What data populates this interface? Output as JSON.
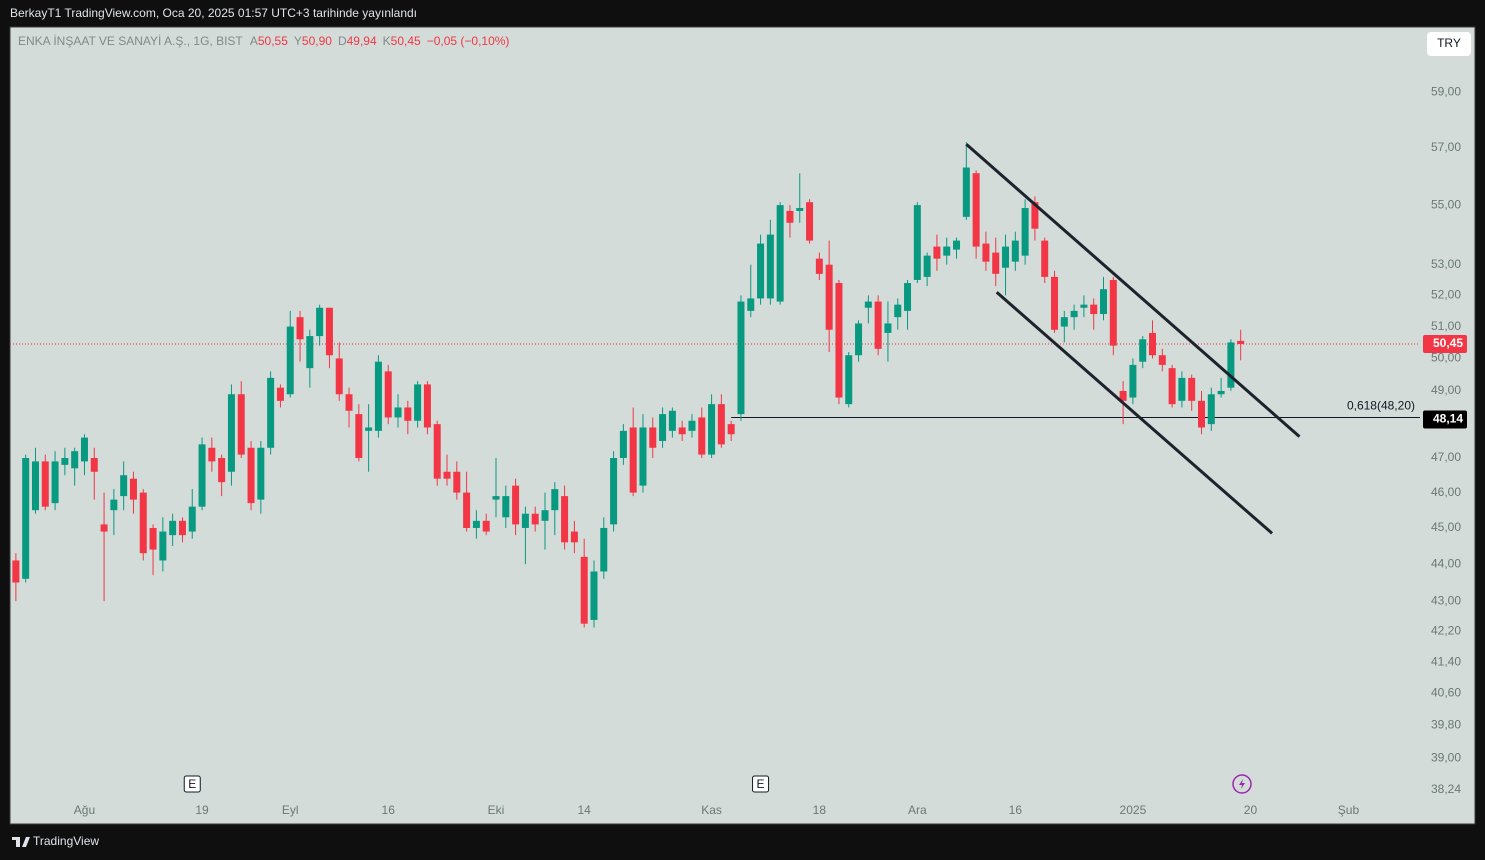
{
  "header": {
    "published": "BerkayT1 TradingView.com, Oca 20, 2025 01:57 UTC+3 tarihinde yayınlandı"
  },
  "chart_data": {
    "type": "candlestick",
    "title": "ENKA İNŞAAT VE SANAYİ A.Ş., 1G, BIST",
    "ohlc_legend": [
      {
        "label": "A",
        "value": "50,55"
      },
      {
        "label": "Y",
        "value": "50,90"
      },
      {
        "label": "D",
        "value": "49,94"
      },
      {
        "label": "K",
        "value": "50,45"
      }
    ],
    "change": "−0,05 (−0,10%)",
    "currency": "TRY",
    "log_scale": true,
    "grid": false,
    "up_color": "#089981",
    "down_color": "#f23645",
    "open": [
      44.1,
      43.6,
      45.5,
      46.9,
      45.7,
      46.8,
      46.7,
      46.9,
      47.0,
      45.1,
      45.5,
      45.9,
      46.4,
      46.0,
      45.0,
      44.1,
      44.8,
      45.2,
      44.9,
      45.6,
      47.3,
      47.0,
      46.6,
      48.9,
      47.3,
      45.8,
      47.3,
      49.1,
      48.9,
      51.3,
      49.7,
      50.7,
      51.6,
      50.0,
      48.9,
      48.3,
      47.8,
      47.8,
      49.6,
      48.2,
      48.5,
      48.1,
      49.2,
      48.0,
      46.6,
      46.6,
      46.0,
      45.0,
      45.2,
      45.8,
      45.3,
      46.2,
      45.0,
      45.4,
      45.2,
      45.5,
      45.9,
      44.9,
      44.2,
      42.5,
      43.8,
      45.1,
      47.0,
      47.9,
      46.2,
      47.9,
      47.5,
      47.8,
      47.9,
      47.8,
      48.2,
      47.1,
      48.6,
      48.0,
      48.3,
      51.5,
      51.9,
      51.9,
      51.8,
      54.8,
      54.8,
      55.1,
      53.2,
      53.0,
      52.4,
      48.6,
      50.1,
      51.6,
      51.8,
      50.8,
      51.3,
      51.5,
      52.5,
      52.6,
      53.6,
      53.3,
      53.5,
      54.6,
      56.1,
      53.7,
      53.4,
      52.9,
      53.1,
      53.3,
      55.1,
      53.8,
      52.6,
      51.0,
      51.3,
      51.6,
      51.7,
      51.4,
      52.5,
      49.0,
      48.8,
      49.9,
      50.8,
      50.1,
      49.7,
      48.7,
      49.4,
      48.7,
      48.0,
      48.9,
      49.1,
      50.55
    ],
    "high": [
      44.3,
      47.1,
      47.3,
      47.1,
      47.2,
      47.3,
      47.3,
      47.7,
      47.3,
      46.0,
      46.1,
      46.9,
      46.6,
      46.1,
      45.1,
      45.3,
      45.4,
      45.3,
      46.1,
      47.6,
      47.6,
      47.1,
      49.2,
      49.3,
      47.5,
      47.5,
      49.6,
      49.2,
      51.5,
      51.5,
      50.9,
      51.7,
      51.6,
      50.5,
      49.1,
      48.6,
      48.6,
      50.1,
      49.8,
      48.9,
      48.7,
      49.3,
      49.3,
      48.1,
      47.1,
      46.9,
      46.6,
      45.5,
      45.4,
      47.0,
      46.2,
      46.4,
      45.6,
      45.6,
      46.0,
      46.3,
      46.2,
      45.2,
      44.7,
      44.1,
      45.3,
      47.2,
      48.0,
      48.5,
      48.3,
      48.2,
      48.5,
      48.5,
      48.1,
      48.3,
      48.5,
      48.9,
      48.9,
      48.1,
      52.0,
      53.0,
      54.0,
      54.5,
      55.1,
      55.0,
      56.1,
      55.2,
      53.4,
      53.8,
      52.5,
      50.2,
      51.2,
      52.0,
      52.0,
      51.8,
      51.9,
      52.5,
      55.1,
      53.4,
      54.0,
      53.9,
      53.9,
      57.2,
      56.2,
      54.1,
      53.9,
      54.0,
      54.1,
      55.2,
      55.3,
      53.9,
      52.8,
      51.5,
      51.7,
      52.0,
      51.9,
      52.6,
      52.6,
      49.3,
      50.0,
      50.7,
      51.2,
      50.3,
      49.8,
      49.6,
      49.5,
      49.0,
      49.1,
      49.4,
      50.6,
      50.9
    ],
    "low": [
      43.0,
      43.5,
      45.4,
      45.5,
      45.5,
      46.5,
      46.2,
      46.5,
      45.8,
      43.0,
      44.8,
      45.5,
      45.4,
      44.1,
      43.7,
      43.8,
      44.5,
      44.6,
      44.7,
      45.5,
      46.6,
      45.9,
      46.2,
      47.0,
      45.5,
      45.4,
      47.1,
      48.5,
      48.8,
      49.9,
      49.1,
      50.4,
      49.7,
      48.7,
      47.9,
      46.9,
      46.6,
      47.6,
      48.0,
      47.9,
      47.7,
      47.9,
      47.7,
      46.2,
      46.2,
      45.8,
      44.9,
      44.7,
      44.8,
      45.3,
      45.0,
      44.8,
      44.0,
      44.9,
      44.4,
      44.8,
      44.4,
      44.3,
      42.3,
      42.3,
      43.6,
      44.9,
      46.8,
      45.9,
      46.0,
      47.0,
      47.3,
      47.6,
      47.5,
      47.6,
      47.0,
      47.0,
      47.3,
      47.5,
      48.1,
      51.3,
      51.7,
      51.7,
      51.7,
      53.9,
      54.4,
      53.7,
      52.5,
      50.2,
      48.6,
      48.5,
      49.9,
      51.1,
      50.1,
      49.9,
      50.9,
      50.9,
      52.4,
      52.3,
      52.8,
      53.0,
      53.2,
      54.5,
      53.2,
      52.8,
      52.3,
      52.0,
      52.8,
      53.0,
      53.8,
      52.4,
      50.8,
      50.5,
      50.9,
      51.3,
      50.9,
      51.2,
      50.1,
      48.0,
      48.6,
      49.7,
      50.0,
      49.6,
      48.5,
      48.5,
      48.4,
      47.7,
      47.8,
      48.8,
      49.0,
      49.94
    ],
    "close": [
      43.5,
      47.0,
      46.9,
      45.6,
      46.9,
      47.0,
      47.2,
      47.6,
      46.6,
      44.9,
      45.8,
      46.5,
      45.8,
      44.3,
      44.4,
      44.9,
      45.2,
      44.8,
      45.6,
      47.4,
      46.9,
      46.3,
      48.9,
      47.1,
      45.7,
      47.3,
      49.4,
      48.7,
      51.0,
      50.6,
      50.7,
      51.6,
      50.1,
      48.9,
      48.4,
      47.0,
      47.9,
      49.9,
      48.2,
      48.5,
      48.1,
      49.2,
      47.9,
      46.4,
      46.4,
      46.0,
      45.0,
      45.2,
      44.9,
      45.9,
      45.9,
      45.1,
      45.4,
      45.1,
      45.5,
      46.1,
      44.6,
      44.6,
      42.4,
      43.8,
      45.0,
      47.0,
      47.8,
      46.0,
      47.9,
      47.3,
      48.3,
      48.4,
      47.7,
      48.1,
      47.1,
      48.6,
      47.4,
      47.7,
      51.8,
      51.9,
      53.7,
      54.0,
      55.0,
      54.4,
      54.9,
      53.8,
      52.7,
      50.9,
      48.8,
      50.1,
      51.1,
      51.8,
      50.3,
      51.1,
      51.7,
      52.4,
      55.0,
      53.3,
      53.2,
      53.6,
      53.8,
      56.3,
      53.6,
      53.1,
      52.7,
      53.6,
      53.8,
      54.9,
      54.2,
      52.6,
      50.9,
      51.3,
      51.5,
      51.7,
      51.4,
      52.2,
      50.4,
      48.7,
      49.8,
      50.6,
      50.1,
      49.8,
      48.6,
      49.4,
      48.7,
      47.9,
      48.9,
      49.0,
      50.5,
      50.45
    ],
    "xlim": [
      -0.6,
      143.3
    ],
    "xticks": [
      {
        "value": 7,
        "label": "Ağu"
      },
      {
        "value": 19,
        "label": "19"
      },
      {
        "value": 28,
        "label": "Eyl"
      },
      {
        "value": 38,
        "label": "16"
      },
      {
        "value": 49,
        "label": "Eki"
      },
      {
        "value": 58,
        "label": "14"
      },
      {
        "value": 71,
        "label": "Kas"
      },
      {
        "value": 82,
        "label": "18"
      },
      {
        "value": 92,
        "label": "Ara"
      },
      {
        "value": 102,
        "label": "16"
      },
      {
        "value": 114,
        "label": "2025"
      },
      {
        "value": 126,
        "label": "20"
      },
      {
        "value": 136,
        "label": "Şub"
      }
    ],
    "ylim": [
      38.0,
      61.4
    ],
    "yticks": [
      {
        "value": 59,
        "label": "59,00"
      },
      {
        "value": 57,
        "label": "57,00"
      },
      {
        "value": 55,
        "label": "55,00"
      },
      {
        "value": 53,
        "label": "53,00"
      },
      {
        "value": 52,
        "label": "52,00"
      },
      {
        "value": 51,
        "label": "51,00"
      },
      {
        "value": 50,
        "label": "50,00"
      },
      {
        "value": 49,
        "label": "49,00"
      },
      {
        "value": 47,
        "label": "47,00"
      },
      {
        "value": 46,
        "label": "46,00"
      },
      {
        "value": 45,
        "label": "45,00"
      },
      {
        "value": 44,
        "label": "44,00"
      },
      {
        "value": 43,
        "label": "43,00"
      },
      {
        "value": 42.2,
        "label": "42,20"
      },
      {
        "value": 41.4,
        "label": "41,40"
      },
      {
        "value": 40.6,
        "label": "40,60"
      },
      {
        "value": 39.8,
        "label": "39,80"
      },
      {
        "value": 39,
        "label": "39,00"
      },
      {
        "value": 38.24,
        "label": "38,24"
      }
    ],
    "last_price": {
      "value": 50.45,
      "label": "50,45"
    },
    "level_badge": {
      "value": 48.14,
      "label": "48,14"
    },
    "fib_level": {
      "value": 48.2,
      "label": "0,618(48,20)",
      "x_start": 73
    },
    "trend_lines": [
      {
        "x": [
          97,
          131
        ],
        "y": [
          57.12,
          47.63
        ]
      },
      {
        "x": [
          100.1,
          128.2
        ],
        "y": [
          52.1,
          44.85
        ]
      }
    ],
    "events": [
      {
        "x": 18,
        "label": "E"
      },
      {
        "x": 76,
        "label": "E"
      }
    ]
  },
  "footer": {
    "brand": "TradingView"
  }
}
